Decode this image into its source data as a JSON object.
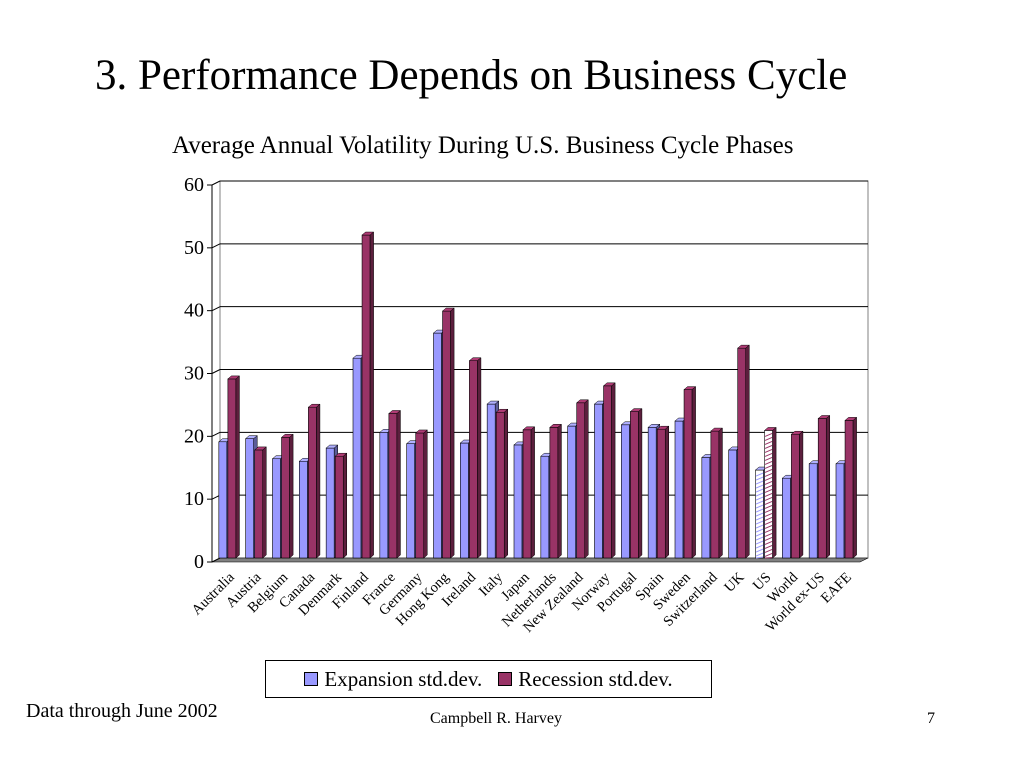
{
  "slide": {
    "title": "3. Performance Depends on Business Cycle",
    "footnote": "Data through June 2002",
    "author": "Campbell R. Harvey",
    "page_number": "7"
  },
  "chart_data": {
    "type": "bar",
    "title": "Average Annual Volatility During U.S. Business Cycle Phases",
    "xlabel": "",
    "ylabel": "",
    "ylim": [
      0,
      60
    ],
    "yticks": [
      0,
      10,
      20,
      30,
      40,
      50,
      60
    ],
    "grid": true,
    "legend_position": "bottom",
    "categories": [
      "Australia",
      "Austria",
      "Belgium",
      "Canada",
      "Denmark",
      "Finland",
      "France",
      "Germany",
      "Hong Kong",
      "Ireland",
      "Italy",
      "Japan",
      "Netherlands",
      "New Zealand",
      "Norway",
      "Portugal",
      "Spain",
      "Sweden",
      "Switzerland",
      "UK",
      "US",
      "World",
      "World ex-US",
      "EAFE"
    ],
    "series": [
      {
        "name": "Expansion std.dev.",
        "color": "#9999ff",
        "values": [
          18.5,
          19.0,
          15.8,
          15.4,
          17.5,
          31.8,
          20.0,
          18.2,
          35.8,
          18.3,
          24.5,
          18.0,
          16.2,
          21.0,
          24.5,
          21.2,
          20.8,
          21.8,
          16.0,
          17.2,
          14.0,
          12.7,
          15.0,
          15.0
        ]
      },
      {
        "name": "Recession std.dev.",
        "color": "#993366",
        "values": [
          28.5,
          17.2,
          19.2,
          24.0,
          16.2,
          51.4,
          23.0,
          19.9,
          39.3,
          31.4,
          23.2,
          20.4,
          20.8,
          24.7,
          27.4,
          23.3,
          20.5,
          26.8,
          20.2,
          33.4,
          20.3,
          19.7,
          22.2,
          21.9
        ]
      }
    ]
  }
}
